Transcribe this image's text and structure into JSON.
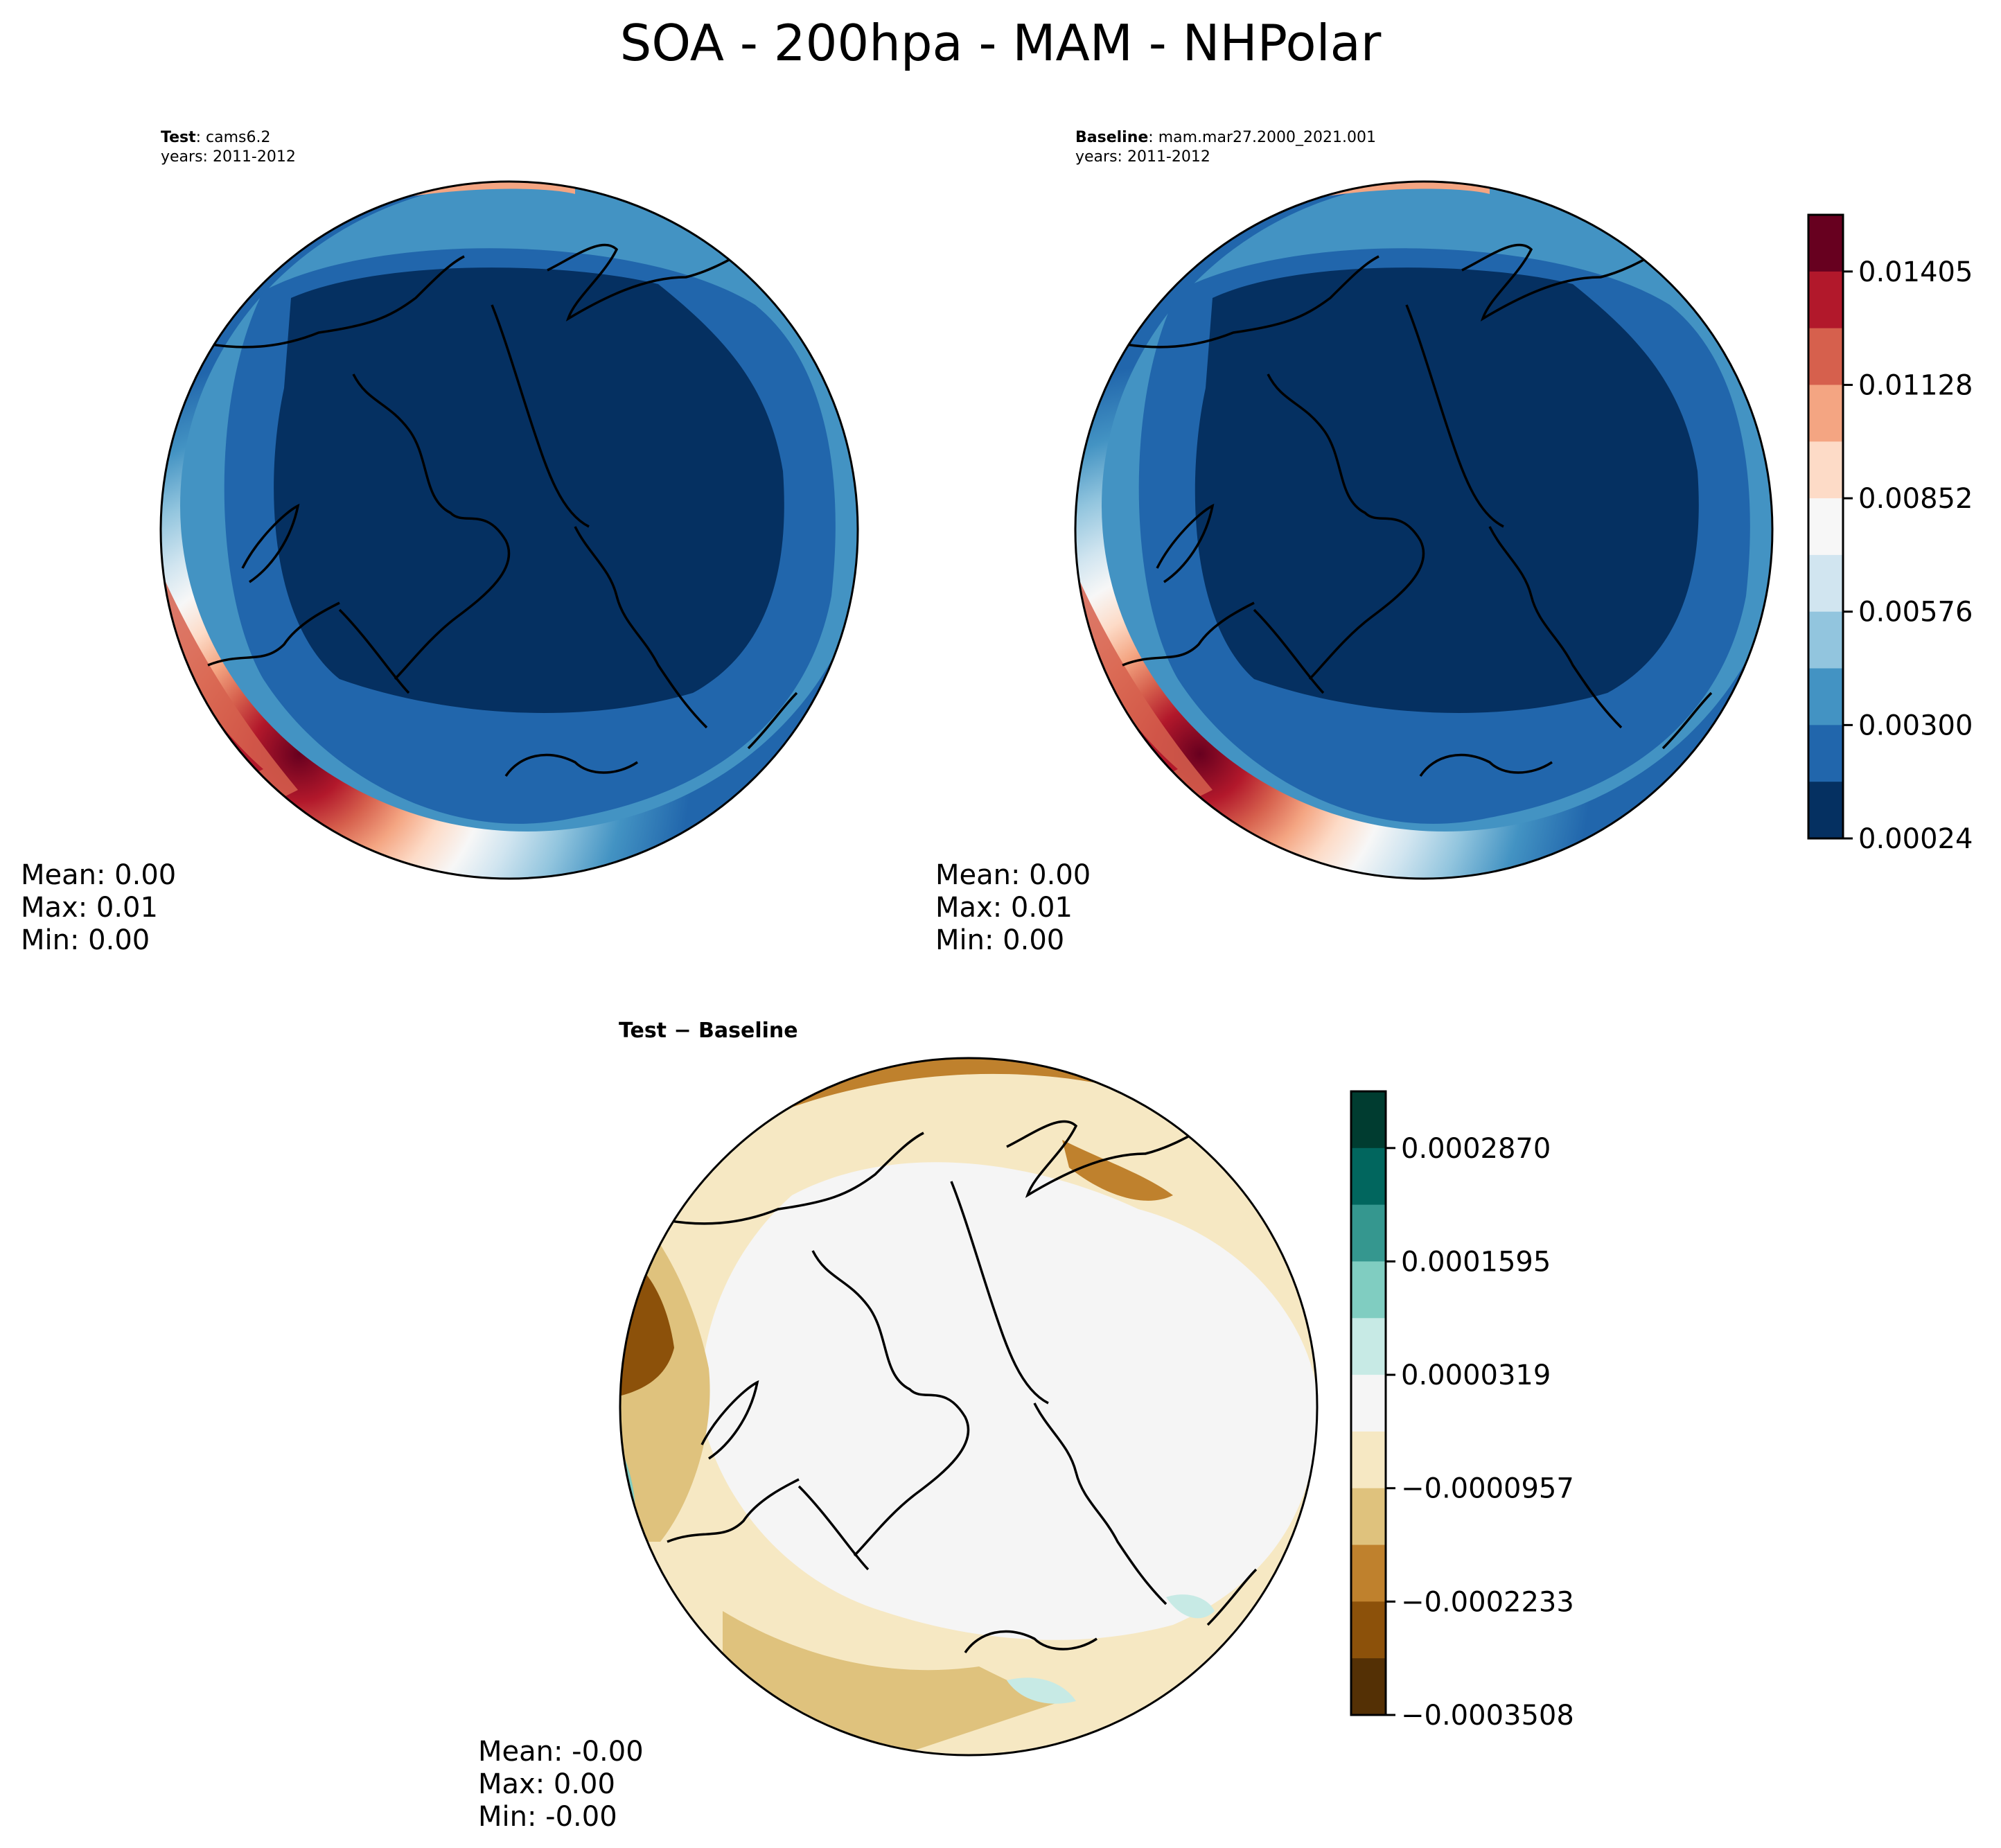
{
  "figure": {
    "title": "SOA - 200hpa - MAM - NHPolar"
  },
  "panels": {
    "test": {
      "label": "Test",
      "case": ": cams6.2",
      "years": "years: 2011-2012",
      "mean": "Mean:  0.00",
      "max": "Max:  0.01",
      "min": "Min:  0.00"
    },
    "baseline": {
      "label": "Baseline",
      "case": ": mam.mar27.2000_2021.001",
      "years": "years: 2011-2012",
      "mean": "Mean:  0.00",
      "max": "Max:  0.01",
      "min": "Min:  0.00"
    },
    "diff": {
      "label": "Test − Baseline",
      "mean": "Mean: -0.00",
      "max": "Max:  0.00",
      "min": "Min: -0.00"
    }
  },
  "colorbars": {
    "main": {
      "ticks": [
        "0.01405",
        "0.01128",
        "0.00852",
        "0.00576",
        "0.00300",
        "0.00024"
      ],
      "colors": [
        "#67001f",
        "#b2182b",
        "#d6604d",
        "#f4a582",
        "#fddbc7",
        "#f7f7f7",
        "#d1e5f0",
        "#92c5de",
        "#4393c3",
        "#2166ac",
        "#053061"
      ]
    },
    "diff": {
      "ticks": [
        "0.0002870",
        "0.0001595",
        "0.0000319",
        "−0.0000957",
        "−0.0002233",
        "−0.0003508"
      ],
      "colors": [
        "#003c30",
        "#01665e",
        "#35978f",
        "#80cdc1",
        "#c7eae5",
        "#f5f5f5",
        "#f6e8c3",
        "#dfc27d",
        "#bf812d",
        "#8c510a",
        "#543005"
      ]
    }
  },
  "chart_data": [
    {
      "type": "heatmap",
      "title": "Test : cams6.2",
      "projection": "North polar stereographic",
      "colorbar_levels": [
        0.00024,
        0.003,
        0.00576,
        0.00852,
        0.01128,
        0.01405
      ],
      "stats": {
        "mean": 0.0,
        "max": 0.01,
        "min": 0.0
      }
    },
    {
      "type": "heatmap",
      "title": "Baseline : mam.mar27.2000_2021.001",
      "projection": "North polar stereographic",
      "colorbar_levels": [
        0.00024,
        0.003,
        0.00576,
        0.00852,
        0.01128,
        0.01405
      ],
      "stats": {
        "mean": 0.0,
        "max": 0.01,
        "min": 0.0
      }
    },
    {
      "type": "heatmap",
      "title": "Test − Baseline",
      "projection": "North polar stereographic",
      "colorbar_levels": [
        -0.0003508,
        -0.0002233,
        -9.57e-05,
        3.19e-05,
        0.0001595,
        0.000287
      ],
      "stats": {
        "mean": -0.0,
        "max": 0.0,
        "min": -0.0
      }
    }
  ]
}
